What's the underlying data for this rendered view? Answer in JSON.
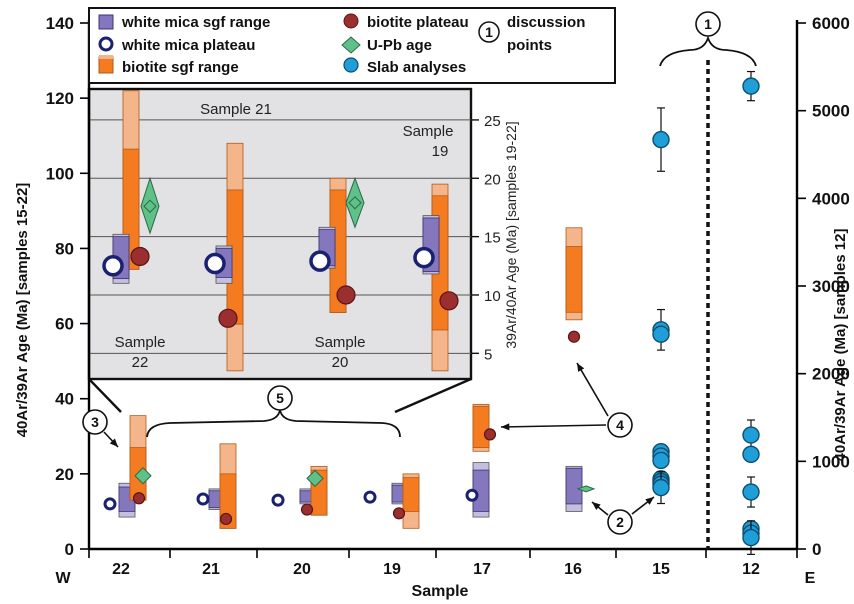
{
  "chart_data": {
    "type": "range-and-point",
    "xlabel": "Sample",
    "west_label": "W",
    "east_label": "E",
    "ylabel_left": "40Ar/39Ar Age (Ma) [samples 15-22]",
    "ylabel_right": "40Ar/39Ar Age (Ma) [samples 12]",
    "ylim_left": [
      0,
      140
    ],
    "yticks_left": [
      0,
      20,
      40,
      60,
      80,
      100,
      120,
      140
    ],
    "ylim_right": [
      0,
      6000
    ],
    "yticks_right": [
      0,
      1000,
      2000,
      3000,
      4000,
      5000,
      6000
    ],
    "categories": [
      "22",
      "21",
      "20",
      "19",
      "17",
      "16",
      "15",
      "12"
    ],
    "colors": {
      "white_mica": "#8477bd",
      "white_mica_light": "#c4bfe0",
      "biotite": "#f47b20",
      "biotite_light": "#f5b58a",
      "biotite_plateau": "#9b2f2f",
      "upb": "#5fc088",
      "slab": "#1f9ed7",
      "inset_bg": "#e2e2e4",
      "white_mica_plateau_edge": "#1a2170"
    },
    "legend": [
      {
        "label": "white mica sgf range",
        "marker": "wm-box"
      },
      {
        "label": "white mica plateau",
        "marker": "wm-circle"
      },
      {
        "label": "biotite sgf range",
        "marker": "bt-box"
      },
      {
        "label": "biotite plateau",
        "marker": "bt-circle"
      },
      {
        "label": "U-Pb age",
        "marker": "diamond"
      },
      {
        "label": "Slab analyses",
        "marker": "slab-circle"
      },
      {
        "label": "discussion points",
        "marker": "numbered-circle",
        "number": "1"
      }
    ],
    "series": {
      "white_mica_sgf_range": [
        {
          "cat": "22",
          "outer": [
            8.5,
            17.5
          ],
          "inner": [
            10,
            16.5
          ]
        },
        {
          "cat": "21",
          "outer": [
            10.5,
            16
          ],
          "inner": [
            11,
            15.5
          ]
        },
        {
          "cat": "20",
          "outer": [
            12,
            16
          ],
          "inner": [
            12.5,
            15.5
          ]
        },
        {
          "cat": "19",
          "outer": [
            12,
            17.5
          ],
          "inner": [
            12.5,
            17
          ]
        },
        {
          "cat": "17",
          "outer": [
            8.5,
            23
          ],
          "inner": [
            10,
            21
          ]
        },
        {
          "cat": "16",
          "outer": [
            10,
            22
          ],
          "inner": [
            12,
            21.5
          ]
        }
      ],
      "white_mica_plateau": [
        {
          "cat": "22",
          "y": 12
        },
        {
          "cat": "21",
          "y": 13.3
        },
        {
          "cat": "20",
          "y": 13
        },
        {
          "cat": "19",
          "y": 13.8
        },
        {
          "cat": "17",
          "y": 14.3
        }
      ],
      "biotite_sgf_range": [
        {
          "cat": "22",
          "outer": [
            13,
            35.5
          ],
          "inner": [
            13,
            27
          ]
        },
        {
          "cat": "21",
          "outer": [
            5.5,
            28
          ],
          "inner": [
            5.5,
            20
          ]
        },
        {
          "cat": "20",
          "outer": [
            9,
            22
          ],
          "inner": [
            9,
            21
          ]
        },
        {
          "cat": "19",
          "outer": [
            5.5,
            20
          ],
          "inner": [
            10,
            19
          ]
        },
        {
          "cat": "17",
          "outer": [
            26,
            38.5
          ],
          "inner": [
            27,
            38
          ]
        },
        {
          "cat": "16",
          "outer": [
            61,
            85.5
          ],
          "inner": [
            63,
            80.5
          ]
        }
      ],
      "biotite_plateau": [
        {
          "cat": "22",
          "y": 13.5
        },
        {
          "cat": "21",
          "y": 8
        },
        {
          "cat": "20",
          "y": 10.5
        },
        {
          "cat": "19",
          "y": 9.5
        },
        {
          "cat": "17",
          "y": 30.5
        },
        {
          "cat": "16",
          "y": 56.5
        }
      ],
      "u_pb_age": [
        {
          "cat": "22",
          "y": 19.5,
          "low": 17,
          "high": 22
        },
        {
          "cat": "20",
          "y": 18.8,
          "low": 16.5,
          "high": 21.5
        },
        {
          "cat": "16",
          "y": 16
        }
      ],
      "slab_analyses": [
        {
          "cat": "15",
          "y": 4670,
          "err": 270
        },
        {
          "cat": "15",
          "y": 2500,
          "err": 140
        },
        {
          "cat": "15",
          "y": 2450
        },
        {
          "cat": "15",
          "y": 1110
        },
        {
          "cat": "15",
          "y": 1060
        },
        {
          "cat": "15",
          "y": 1010
        },
        {
          "cat": "15",
          "y": 800
        },
        {
          "cat": "15",
          "y": 770
        },
        {
          "cat": "15",
          "y": 740
        },
        {
          "cat": "15",
          "y": 700,
          "err": 90
        },
        {
          "cat": "12",
          "y": 5280,
          "err": 75
        },
        {
          "cat": "12",
          "y": 1300,
          "err": 80
        },
        {
          "cat": "12",
          "y": 1080
        },
        {
          "cat": "12",
          "y": 650,
          "err": 80
        },
        {
          "cat": "12",
          "y": 230
        },
        {
          "cat": "12",
          "y": 180
        },
        {
          "cat": "12",
          "y": 130,
          "err": 100
        }
      ]
    },
    "inset": {
      "axis_label_right": "39Ar/40Ar Age (Ma) [samples 19-22]",
      "ylim": [
        3,
        27.5
      ],
      "yticks": [
        5,
        10,
        15,
        20,
        25
      ],
      "samples": [
        "22",
        "21",
        "20",
        "19"
      ],
      "sample_labels": [
        {
          "line1": "Sample",
          "line2": "22"
        },
        {
          "line1": "Sample 21",
          "line2": ""
        },
        {
          "line1": "Sample",
          "line2": "20"
        },
        {
          "line1": "Sample",
          "line2": "19"
        }
      ],
      "white_mica_sgf_range": [
        {
          "cat": "22",
          "outer": [
            11,
            15.2
          ],
          "inner": [
            11.4,
            15
          ]
        },
        {
          "cat": "21",
          "outer": [
            11,
            14.2
          ],
          "inner": [
            11.5,
            14
          ]
        },
        {
          "cat": "20",
          "outer": [
            12.3,
            15.8
          ],
          "inner": [
            12.5,
            15.6
          ]
        },
        {
          "cat": "19",
          "outer": [
            11.8,
            16.8
          ],
          "inner": [
            12,
            16.6
          ]
        }
      ],
      "white_mica_plateau": [
        {
          "cat": "22",
          "y": 12.5
        },
        {
          "cat": "21",
          "y": 12.7
        },
        {
          "cat": "20",
          "y": 12.9
        },
        {
          "cat": "19",
          "y": 13.2
        }
      ],
      "biotite_sgf_range": [
        {
          "cat": "22",
          "outer": [
            12.2,
            27.5
          ],
          "inner": [
            12.2,
            22.5
          ]
        },
        {
          "cat": "21",
          "outer": [
            3.5,
            23
          ],
          "inner": [
            7.5,
            19
          ]
        },
        {
          "cat": "20",
          "outer": [
            8.5,
            20
          ],
          "inner": [
            8.5,
            19
          ]
        },
        {
          "cat": "19",
          "outer": [
            3.5,
            19.5
          ],
          "inner": [
            7,
            18.5
          ]
        }
      ],
      "biotite_plateau": [
        {
          "cat": "22",
          "y": 13.3
        },
        {
          "cat": "21",
          "y": 8
        },
        {
          "cat": "20",
          "y": 10
        },
        {
          "cat": "19",
          "y": 9.5
        }
      ],
      "u_pb_age": [
        {
          "cat": "22",
          "y": 17.6,
          "low": 15.3,
          "high": 20
        },
        {
          "cat": "20",
          "y": 17.9,
          "low": 15.8,
          "high": 20
        }
      ]
    },
    "callouts": [
      {
        "number": "1",
        "target": "samples 15 and 12"
      },
      {
        "number": "2",
        "target": "samples 16 and 15"
      },
      {
        "number": "3",
        "target": "sample 22"
      },
      {
        "number": "4",
        "target": "samples 17 and 16"
      },
      {
        "number": "5",
        "target": "samples 19-22"
      }
    ]
  }
}
